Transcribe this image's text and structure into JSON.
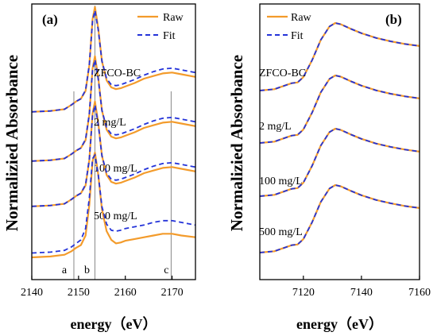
{
  "colors": {
    "raw": "#F39B2B",
    "fit": "#2433D9",
    "axis": "#000000",
    "marker_line": "#888888"
  },
  "chart_data": [
    {
      "panel_label": "(a)",
      "type": "line",
      "xlabel": "energy（eV）",
      "ylabel": "Normalizied Absorbance",
      "xlim": [
        2140,
        2175
      ],
      "xticks": [
        2140,
        2150,
        2160,
        2170
      ],
      "legend": {
        "position": "top-right",
        "entries": [
          "Raw",
          "Fit"
        ]
      },
      "vertical_markers": [
        {
          "x": 2149,
          "label": "a"
        },
        {
          "x": 2153.5,
          "label": "b"
        },
        {
          "x": 2169.8,
          "label": "c"
        }
      ],
      "series": [
        {
          "name": "500 mg/L",
          "offset": 3,
          "x": [
            2140,
            2144,
            2147,
            2148.5,
            2149.5,
            2150.5,
            2151.5,
            2152.3,
            2153,
            2153.5,
            2154.2,
            2155,
            2156,
            2157,
            2158,
            2159,
            2160,
            2162,
            2164,
            2166,
            2168,
            2170,
            2172,
            2175
          ],
          "raw": [
            0.02,
            0.03,
            0.05,
            0.1,
            0.14,
            0.17,
            0.26,
            0.55,
            1.08,
            1.22,
            0.98,
            0.6,
            0.38,
            0.3,
            0.28,
            0.29,
            0.31,
            0.35,
            0.4,
            0.43,
            0.46,
            0.47,
            0.45,
            0.42
          ],
          "fit": [
            0.02,
            0.03,
            0.05,
            0.1,
            0.14,
            0.17,
            0.27,
            0.56,
            1.06,
            1.18,
            0.96,
            0.6,
            0.4,
            0.33,
            0.32,
            0.33,
            0.35,
            0.39,
            0.44,
            0.48,
            0.51,
            0.52,
            0.5,
            0.47
          ]
        },
        {
          "name": "100 mg/L",
          "offset": 2,
          "x": [
            2140,
            2144,
            2147,
            2148.5,
            2149.5,
            2150.5,
            2151.5,
            2152.3,
            2153,
            2153.5,
            2154.2,
            2155,
            2156,
            2157,
            2158,
            2159,
            2160,
            2162,
            2164,
            2166,
            2168,
            2170,
            2172,
            2175
          ],
          "raw": [
            0.02,
            0.03,
            0.05,
            0.1,
            0.14,
            0.17,
            0.26,
            0.55,
            1.08,
            1.22,
            0.98,
            0.6,
            0.38,
            0.3,
            0.28,
            0.29,
            0.31,
            0.35,
            0.4,
            0.43,
            0.46,
            0.47,
            0.45,
            0.42
          ],
          "fit": [
            0.02,
            0.03,
            0.05,
            0.1,
            0.14,
            0.17,
            0.27,
            0.56,
            1.06,
            1.18,
            0.96,
            0.6,
            0.4,
            0.33,
            0.32,
            0.33,
            0.35,
            0.39,
            0.44,
            0.48,
            0.51,
            0.52,
            0.5,
            0.47
          ]
        },
        {
          "name": "2 mg/L",
          "offset": 1,
          "x": [
            2140,
            2144,
            2147,
            2148.5,
            2149.5,
            2150.5,
            2151.5,
            2152.3,
            2153,
            2153.5,
            2154.2,
            2155,
            2156,
            2157,
            2158,
            2159,
            2160,
            2162,
            2164,
            2166,
            2168,
            2170,
            2172,
            2175
          ],
          "raw": [
            0.02,
            0.03,
            0.05,
            0.1,
            0.14,
            0.17,
            0.26,
            0.55,
            1.08,
            1.22,
            0.98,
            0.6,
            0.38,
            0.3,
            0.28,
            0.29,
            0.31,
            0.35,
            0.4,
            0.43,
            0.46,
            0.47,
            0.45,
            0.42
          ],
          "fit": [
            0.02,
            0.03,
            0.05,
            0.1,
            0.14,
            0.17,
            0.27,
            0.56,
            1.06,
            1.18,
            0.96,
            0.6,
            0.4,
            0.33,
            0.32,
            0.33,
            0.35,
            0.39,
            0.44,
            0.48,
            0.51,
            0.52,
            0.5,
            0.47
          ]
        },
        {
          "name": "ZFCO-BC",
          "offset": 0,
          "x": [
            2140,
            2144,
            2147,
            2148.5,
            2149.5,
            2150.5,
            2151.5,
            2152.3,
            2153,
            2153.5,
            2154.2,
            2155,
            2156,
            2157,
            2158,
            2159,
            2160,
            2162,
            2164,
            2166,
            2168,
            2170,
            2172,
            2175
          ],
          "raw": [
            0.0,
            0.01,
            0.03,
            0.07,
            0.11,
            0.14,
            0.25,
            0.6,
            1.1,
            1.2,
            0.95,
            0.55,
            0.3,
            0.2,
            0.16,
            0.17,
            0.19,
            0.21,
            0.23,
            0.25,
            0.27,
            0.27,
            0.25,
            0.23
          ],
          "fit": [
            0.05,
            0.06,
            0.08,
            0.12,
            0.16,
            0.2,
            0.33,
            0.68,
            1.13,
            1.17,
            0.95,
            0.58,
            0.38,
            0.31,
            0.3,
            0.31,
            0.33,
            0.35,
            0.37,
            0.4,
            0.42,
            0.42,
            0.4,
            0.37
          ]
        }
      ]
    },
    {
      "panel_label": "(b)",
      "type": "line",
      "xlabel": "energy（eV）",
      "ylabel": "Normalizied Absorbance",
      "xlim": [
        7105,
        7160
      ],
      "xticks": [
        7120,
        7140,
        7160
      ],
      "legend": {
        "position": "top-left",
        "entries": [
          "Raw",
          "Fit"
        ]
      },
      "series": [
        {
          "name": "500 mg/L",
          "offset": 3,
          "x": [
            7105,
            7110,
            7114,
            7116,
            7118,
            7120,
            7123,
            7126,
            7129,
            7131,
            7133,
            7136,
            7140,
            7145,
            7150,
            7155,
            7160
          ],
          "raw": [
            0.0,
            0.02,
            0.08,
            0.11,
            0.12,
            0.2,
            0.45,
            0.75,
            0.95,
            1.0,
            0.98,
            0.92,
            0.85,
            0.78,
            0.73,
            0.69,
            0.66
          ],
          "fit": [
            0.0,
            0.02,
            0.08,
            0.11,
            0.12,
            0.2,
            0.45,
            0.75,
            0.95,
            1.0,
            0.98,
            0.92,
            0.85,
            0.78,
            0.73,
            0.69,
            0.66
          ]
        },
        {
          "name": "100 mg/L",
          "offset": 2,
          "x": [
            7105,
            7110,
            7114,
            7116,
            7118,
            7120,
            7123,
            7126,
            7129,
            7131,
            7133,
            7136,
            7140,
            7145,
            7150,
            7155,
            7160
          ],
          "raw": [
            0.0,
            0.02,
            0.08,
            0.11,
            0.12,
            0.2,
            0.45,
            0.75,
            0.95,
            1.0,
            0.98,
            0.92,
            0.85,
            0.78,
            0.73,
            0.69,
            0.66
          ],
          "fit": [
            0.0,
            0.02,
            0.08,
            0.11,
            0.12,
            0.2,
            0.45,
            0.75,
            0.95,
            1.0,
            0.98,
            0.92,
            0.85,
            0.78,
            0.73,
            0.69,
            0.66
          ]
        },
        {
          "name": "2 mg/L",
          "offset": 1,
          "x": [
            7105,
            7110,
            7114,
            7116,
            7118,
            7120,
            7123,
            7126,
            7129,
            7131,
            7133,
            7136,
            7140,
            7145,
            7150,
            7155,
            7160
          ],
          "raw": [
            0.0,
            0.02,
            0.08,
            0.11,
            0.12,
            0.2,
            0.45,
            0.75,
            0.95,
            1.0,
            0.98,
            0.92,
            0.85,
            0.78,
            0.73,
            0.69,
            0.66
          ],
          "fit": [
            0.0,
            0.02,
            0.08,
            0.11,
            0.12,
            0.2,
            0.45,
            0.75,
            0.95,
            1.0,
            0.98,
            0.92,
            0.85,
            0.78,
            0.73,
            0.69,
            0.66
          ]
        },
        {
          "name": "ZFCO-BC",
          "offset": 0,
          "x": [
            7105,
            7110,
            7114,
            7116,
            7118,
            7120,
            7123,
            7126,
            7129,
            7131,
            7133,
            7136,
            7140,
            7145,
            7150,
            7155,
            7160
          ],
          "raw": [
            0.0,
            0.02,
            0.08,
            0.11,
            0.12,
            0.2,
            0.45,
            0.75,
            0.95,
            1.0,
            0.98,
            0.92,
            0.85,
            0.78,
            0.73,
            0.69,
            0.66
          ],
          "fit": [
            0.0,
            0.02,
            0.08,
            0.11,
            0.12,
            0.2,
            0.45,
            0.75,
            0.95,
            1.0,
            0.98,
            0.92,
            0.85,
            0.78,
            0.73,
            0.69,
            0.66
          ]
        }
      ]
    }
  ]
}
